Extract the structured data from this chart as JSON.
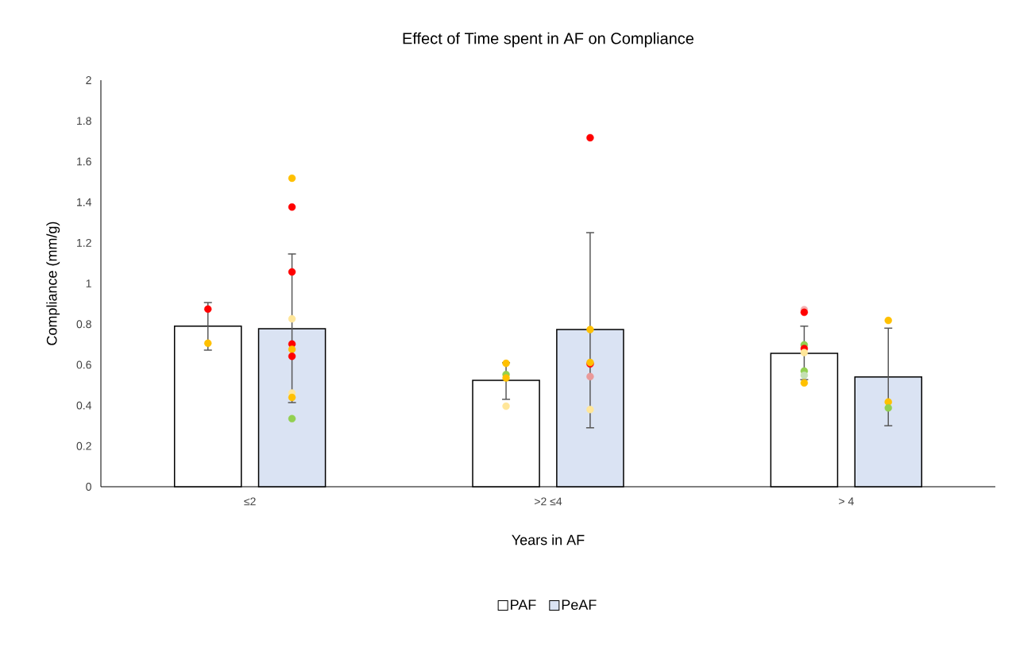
{
  "chart_data": {
    "type": "bar",
    "title": "Effect of Time spent in AF on Compliance",
    "xlabel": "Years in AF",
    "ylabel": "Compliance (mm/g)",
    "categories": [
      "≤2",
      ">2 ≤4",
      "> 4"
    ],
    "series": [
      {
        "name": "PAF",
        "color": "#ffffff",
        "values": [
          0.79,
          0.523,
          0.656
        ],
        "errors": [
          [
            0.672,
            0.906
          ],
          [
            0.43,
            0.61
          ],
          [
            0.527,
            0.79
          ]
        ]
      },
      {
        "name": "PeAF",
        "color": "#dae3f3",
        "values": [
          0.777,
          0.773,
          0.54
        ],
        "errors": [
          [
            0.414,
            1.145
          ],
          [
            0.29,
            1.25
          ],
          [
            0.3,
            0.78
          ]
        ]
      },
      {
        "type": "scatter",
        "x": [
          "≤2",
          "≤2",
          ">2 ≤4",
          ">2 ≤4",
          ">2 ≤4",
          ">2 ≤4",
          "> 4",
          "> 4",
          "> 4",
          "> 4",
          "> 4",
          "> 4",
          "> 4",
          "> 4"
        ],
        "values": [
          0.874,
          0.706,
          0.607,
          0.552,
          0.535,
          0.396,
          0.871,
          0.858,
          0.698,
          0.68,
          0.66,
          0.569,
          0.548,
          0.511
        ],
        "colors": [
          "#ff0000",
          "#ffc000",
          "#ffc000",
          "#92d050",
          "#ffc000",
          "#ffe699",
          "#f4b0b0",
          "#ff0000",
          "#92d050",
          "#ff0000",
          "#ffe699",
          "#92d050",
          "#c5e0b4",
          "#ffc000"
        ]
      },
      {
        "type": "scatter",
        "x": [
          "≤2",
          "≤2",
          "≤2",
          "≤2",
          "≤2",
          "≤2",
          "≤2",
          "≤2",
          "≤2",
          "≤2",
          ">2 ≤4",
          ">2 ≤4",
          ">2 ≤4",
          ">2 ≤4",
          ">2 ≤4",
          ">2 ≤4",
          "> 4",
          "> 4",
          "> 4"
        ],
        "values": [
          1.518,
          1.376,
          1.057,
          0.826,
          0.702,
          0.676,
          0.642,
          0.461,
          0.439,
          0.335,
          1.717,
          0.773,
          0.604,
          0.611,
          0.542,
          0.38,
          0.818,
          0.417,
          0.388
        ],
        "colors": [
          "#ffc000",
          "#ff0000",
          "#ff0000",
          "#ffe699",
          "#ff0000",
          "#ffc000",
          "#ff0000",
          "#ffe699",
          "#ffc000",
          "#92d050",
          "#ff0000",
          "#ffc000",
          "#ff0000",
          "#ffc000",
          "#ea9999",
          "#ffe699",
          "#ffc000",
          "#ffc000",
          "#92d050"
        ]
      }
    ],
    "ylim": [
      0,
      2
    ],
    "yticks": [
      0,
      0.2,
      0.4,
      0.6,
      0.8,
      1,
      1.2,
      1.4,
      1.6,
      1.8,
      2
    ],
    "grid": false,
    "legend": "bottom",
    "marker": "circle"
  }
}
